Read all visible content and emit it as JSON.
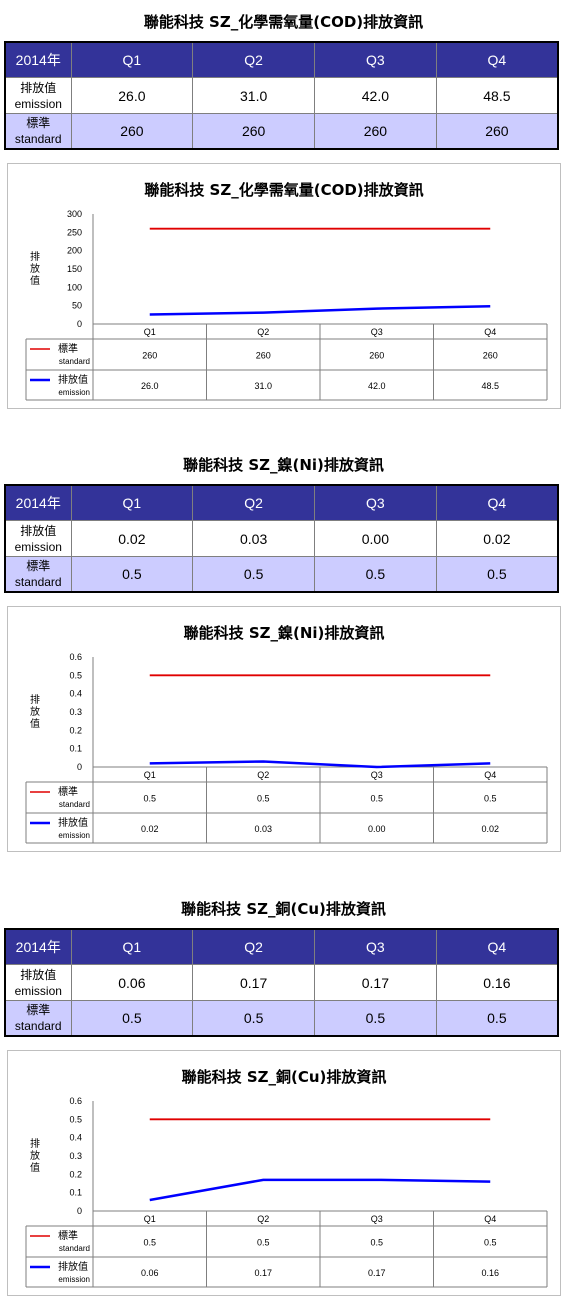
{
  "colors": {
    "header_bg": "#333399",
    "header_text": "#ffffff",
    "standard_row_bg": "#ccccff",
    "standard_line": "#e00000",
    "emission_line": "#0000ff"
  },
  "sections": [
    {
      "title": "聯能科技 SZ_化學需氧量(COD)排放資訊",
      "table": {
        "year_label": "2014年",
        "quarters": [
          "Q1",
          "Q2",
          "Q3",
          "Q4"
        ],
        "emission_label": [
          "排放值",
          "emission"
        ],
        "standard_label": [
          "標準",
          "standard"
        ],
        "emission": [
          "26.0",
          "31.0",
          "42.0",
          "48.5"
        ],
        "standard": [
          "260",
          "260",
          "260",
          "260"
        ]
      }
    },
    {
      "title": "聯能科技 SZ_鎳(Ni)排放資訊",
      "table": {
        "year_label": "2014年",
        "quarters": [
          "Q1",
          "Q2",
          "Q3",
          "Q4"
        ],
        "emission_label": [
          "排放值",
          "emission"
        ],
        "standard_label": [
          "標準",
          "standard"
        ],
        "emission": [
          "0.02",
          "0.03",
          "0.00",
          "0.02"
        ],
        "standard": [
          "0.5",
          "0.5",
          "0.5",
          "0.5"
        ]
      }
    },
    {
      "title": "聯能科技 SZ_銅(Cu)排放資訊",
      "table": {
        "year_label": "2014年",
        "quarters": [
          "Q1",
          "Q2",
          "Q3",
          "Q4"
        ],
        "emission_label": [
          "排放值",
          "emission"
        ],
        "standard_label": [
          "標準",
          "standard"
        ],
        "emission": [
          "0.06",
          "0.17",
          "0.17",
          "0.16"
        ],
        "standard": [
          "0.5",
          "0.5",
          "0.5",
          "0.5"
        ]
      }
    }
  ],
  "chart_data": [
    {
      "type": "line",
      "title": "聯能科技 SZ_化學需氧量(COD)排放資訊",
      "ylabel": "排放值",
      "categories": [
        "Q1",
        "Q2",
        "Q3",
        "Q4"
      ],
      "ylim": [
        0,
        300
      ],
      "yticks": [
        "0",
        "50",
        "100",
        "150",
        "200",
        "250",
        "300"
      ],
      "grid": false,
      "legend": "data-table",
      "series": [
        {
          "name": "標準",
          "name_en": "standard",
          "color": "#e00000",
          "values": [
            260,
            260,
            260,
            260
          ],
          "labels": [
            "260",
            "260",
            "260",
            "260"
          ]
        },
        {
          "name": "排放值",
          "name_en": "emission",
          "color": "#0000ff",
          "values": [
            26.0,
            31.0,
            42.0,
            48.5
          ],
          "labels": [
            "26.0",
            "31.0",
            "42.0",
            "48.5"
          ]
        }
      ]
    },
    {
      "type": "line",
      "title": "聯能科技 SZ_鎳(Ni)排放資訊",
      "ylabel": "排放值",
      "categories": [
        "Q1",
        "Q2",
        "Q3",
        "Q4"
      ],
      "ylim": [
        0,
        0.6
      ],
      "yticks": [
        "0",
        "0.1",
        "0.2",
        "0.3",
        "0.4",
        "0.5",
        "0.6"
      ],
      "grid": false,
      "legend": "data-table",
      "series": [
        {
          "name": "標準",
          "name_en": "standard",
          "color": "#e00000",
          "values": [
            0.5,
            0.5,
            0.5,
            0.5
          ],
          "labels": [
            "0.5",
            "0.5",
            "0.5",
            "0.5"
          ]
        },
        {
          "name": "排放值",
          "name_en": "emission",
          "color": "#0000ff",
          "values": [
            0.02,
            0.03,
            0.0,
            0.02
          ],
          "labels": [
            "0.02",
            "0.03",
            "0.00",
            "0.02"
          ]
        }
      ]
    },
    {
      "type": "line",
      "title": "聯能科技 SZ_銅(Cu)排放資訊",
      "ylabel": "排放值",
      "categories": [
        "Q1",
        "Q2",
        "Q3",
        "Q4"
      ],
      "ylim": [
        0,
        0.6
      ],
      "yticks": [
        "0",
        "0.1",
        "0.2",
        "0.3",
        "0.4",
        "0.5",
        "0.6"
      ],
      "grid": false,
      "legend": "data-table",
      "series": [
        {
          "name": "標準",
          "name_en": "standard",
          "color": "#e00000",
          "values": [
            0.5,
            0.5,
            0.5,
            0.5
          ],
          "labels": [
            "0.5",
            "0.5",
            "0.5",
            "0.5"
          ]
        },
        {
          "name": "排放值",
          "name_en": "emission",
          "color": "#0000ff",
          "values": [
            0.06,
            0.17,
            0.17,
            0.16
          ],
          "labels": [
            "0.06",
            "0.17",
            "0.17",
            "0.16"
          ]
        }
      ]
    }
  ]
}
